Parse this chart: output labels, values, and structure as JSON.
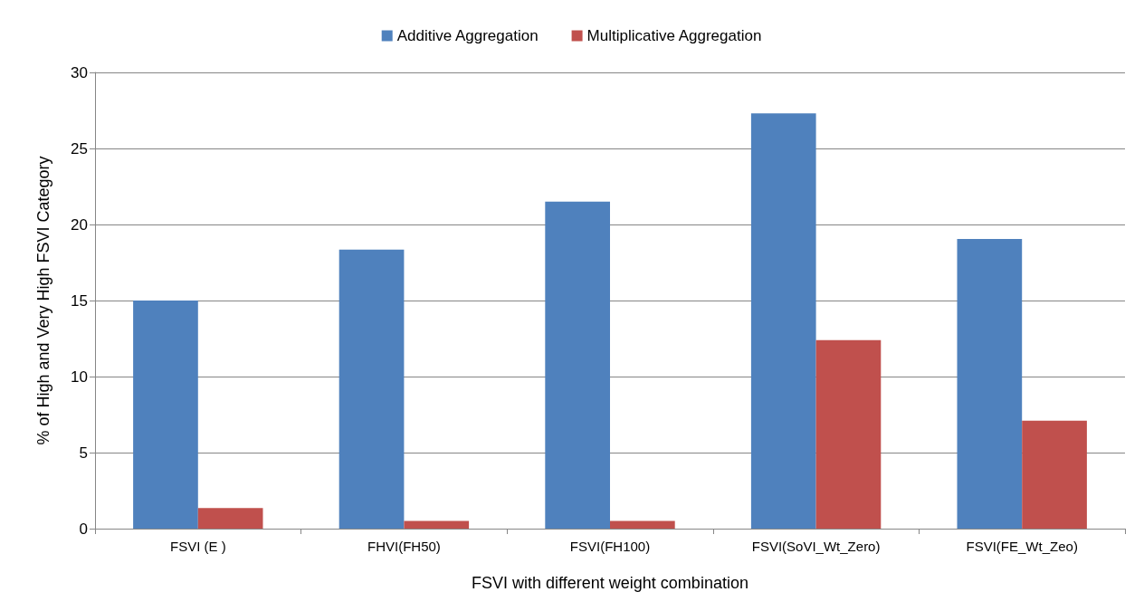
{
  "chart_data": {
    "type": "bar",
    "xlabel": "FSVI with different weight combination",
    "ylabel": "% of High and Very High FSVI Category",
    "categories": [
      "FSVI (E )",
      "FHVI(FH50)",
      "FSVI(FH100)",
      "FSVI(SoVI_Wt_Zero)",
      "FSVI(FE_Wt_Zeo)"
    ],
    "series": [
      {
        "name": "Additive Aggregation",
        "color": "#4f81bd",
        "values": [
          15.0,
          18.35,
          21.5,
          27.3,
          19.05
        ]
      },
      {
        "name": "Multiplicative Aggregation",
        "color": "#c0504d",
        "values": [
          1.35,
          0.5,
          0.5,
          12.4,
          7.1
        ]
      }
    ],
    "ylim": [
      0,
      30
    ],
    "yticks": [
      0,
      5,
      10,
      15,
      20,
      25,
      30
    ],
    "grid": "y",
    "legend": "top"
  }
}
